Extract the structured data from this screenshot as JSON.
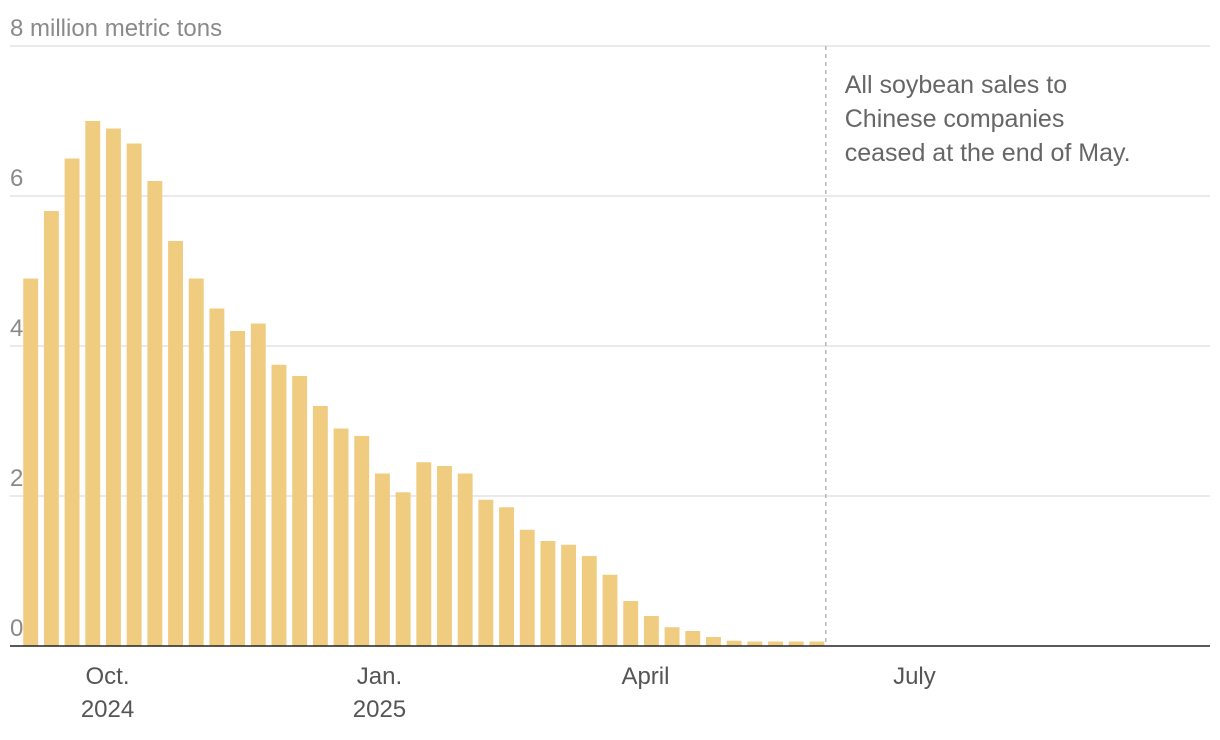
{
  "chart_data": {
    "type": "bar",
    "y_unit_label": "8 million metric tons",
    "ylim": [
      0,
      8
    ],
    "y_ticks": [
      {
        "value": 0,
        "label": "0"
      },
      {
        "value": 2,
        "label": "2"
      },
      {
        "value": 4,
        "label": "4"
      },
      {
        "value": 6,
        "label": "6"
      },
      {
        "value": 8,
        "label": "8 million metric tons"
      }
    ],
    "grid": true,
    "bar_color": "#f0cc80",
    "x_domain": [
      "2024-08-29",
      "2025-10-09"
    ],
    "x_ticks": [
      {
        "date": "2024-10-01",
        "month": "Oct.",
        "year": "2024"
      },
      {
        "date": "2025-01-01",
        "month": "Jan.",
        "year": "2025"
      },
      {
        "date": "2025-04-01",
        "month": "April",
        "year": ""
      },
      {
        "date": "2025-07-01",
        "month": "July",
        "year": ""
      }
    ],
    "annotation": {
      "date": "2025-06-01",
      "lines": [
        "All soybean sales to",
        "Chinese companies",
        "ceased at the end of May."
      ]
    },
    "series": [
      {
        "weeks": [
          "2024-09-05",
          "2024-09-12",
          "2024-09-19",
          "2024-09-26",
          "2024-10-03",
          "2024-10-10",
          "2024-10-17",
          "2024-10-24",
          "2024-10-31",
          "2024-11-07",
          "2024-11-14",
          "2024-11-21",
          "2024-11-28",
          "2024-12-05",
          "2024-12-12",
          "2024-12-19",
          "2024-12-26",
          "2025-01-02",
          "2025-01-09",
          "2025-01-16",
          "2025-01-23",
          "2025-01-30",
          "2025-02-06",
          "2025-02-13",
          "2025-02-20",
          "2025-02-27",
          "2025-03-06",
          "2025-03-13",
          "2025-03-20",
          "2025-03-27",
          "2025-04-03",
          "2025-04-10",
          "2025-04-17",
          "2025-04-24",
          "2025-05-01",
          "2025-05-08",
          "2025-05-15",
          "2025-05-22",
          "2025-05-29"
        ],
        "values": [
          4.9,
          5.8,
          6.5,
          7.0,
          6.9,
          6.7,
          6.2,
          5.4,
          4.9,
          4.5,
          4.2,
          4.3,
          3.75,
          3.6,
          3.2,
          2.9,
          2.8,
          2.3,
          2.05,
          2.45,
          2.4,
          2.3,
          1.95,
          1.85,
          1.55,
          1.4,
          1.35,
          1.2,
          0.95,
          0.6,
          0.4,
          0.25,
          0.2,
          0.12,
          0.07,
          0.06,
          0.06,
          0.06,
          0.06
        ]
      }
    ]
  }
}
